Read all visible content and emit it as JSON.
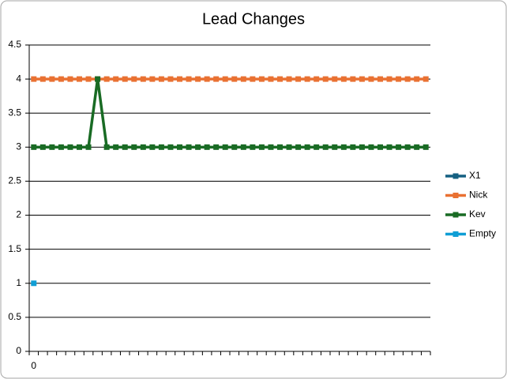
{
  "chart_data": {
    "type": "line",
    "title": "Lead Changes",
    "categories": [
      "0",
      null,
      null,
      null,
      null,
      null,
      null,
      null,
      null,
      null,
      null,
      null,
      null,
      null,
      null,
      null,
      null,
      null,
      null,
      null,
      null,
      null,
      null,
      null,
      null,
      null,
      null,
      null,
      null,
      null,
      null,
      null,
      null,
      null,
      null,
      null,
      null,
      null,
      null,
      null,
      null,
      null,
      null,
      null
    ],
    "series": [
      {
        "name": "X1",
        "color": "#156082",
        "values": [
          null,
          null,
          null,
          null,
          null,
          null,
          null,
          null,
          null,
          null,
          null,
          null,
          null,
          null,
          null,
          null,
          null,
          null,
          null,
          null,
          null,
          null,
          null,
          null,
          null,
          null,
          null,
          null,
          null,
          null,
          null,
          null,
          null,
          null,
          null,
          null,
          null,
          null,
          null,
          null,
          null,
          null,
          null,
          null
        ]
      },
      {
        "name": "Nick",
        "color": "#e97132",
        "values": [
          4,
          4,
          4,
          4,
          4,
          4,
          4,
          4,
          4,
          4,
          4,
          4,
          4,
          4,
          4,
          4,
          4,
          4,
          4,
          4,
          4,
          4,
          4,
          4,
          4,
          4,
          4,
          4,
          4,
          4,
          4,
          4,
          4,
          4,
          4,
          4,
          4,
          4,
          4,
          4,
          4,
          4,
          4,
          4
        ]
      },
      {
        "name": "Kev",
        "color": "#196b24",
        "values": [
          3,
          3,
          3,
          3,
          3,
          3,
          3,
          4,
          3,
          3,
          3,
          3,
          3,
          3,
          3,
          3,
          3,
          3,
          3,
          3,
          3,
          3,
          3,
          3,
          3,
          3,
          3,
          3,
          3,
          3,
          3,
          3,
          3,
          3,
          3,
          3,
          3,
          3,
          3,
          3,
          3,
          3,
          3,
          3
        ]
      },
      {
        "name": "Empty",
        "color": "#0f9ed5",
        "values": [
          1,
          null,
          null,
          null,
          null,
          null,
          null,
          null,
          null,
          null,
          null,
          null,
          null,
          null,
          null,
          null,
          null,
          null,
          null,
          null,
          null,
          null,
          null,
          null,
          null,
          null,
          null,
          null,
          null,
          null,
          null,
          null,
          null,
          null,
          null,
          null,
          null,
          null,
          null,
          null,
          null,
          null,
          null,
          null
        ]
      }
    ],
    "ylim": [
      0,
      4.5
    ],
    "yticks": [
      0,
      0.5,
      1,
      1.5,
      2,
      2.5,
      3,
      3.5,
      4,
      4.5
    ],
    "grid": true,
    "legend": "right"
  }
}
